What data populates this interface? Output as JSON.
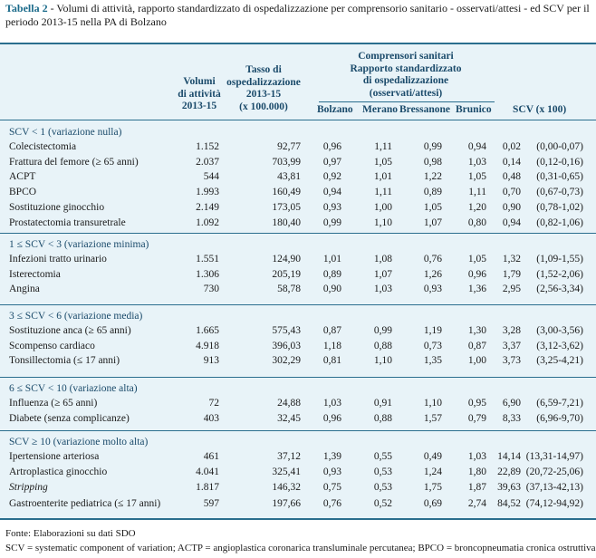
{
  "caption": {
    "label": "Tabella 2",
    "text": " - Volumi di attività, rapporto standardizzato di ospedalizzazione per comprensorio sanitario - osservati/attesi - ed SCV per il periodo 2013-15 nella PA di Bolzano"
  },
  "headers": {
    "volumi": [
      "Volumi",
      "di attività",
      "2013-15"
    ],
    "tasso": [
      "Tasso di",
      "ospedalizzazione",
      "2013-15",
      "(x 100.000)"
    ],
    "comprensori": [
      "Comprensori sanitari",
      "Rapporto standardizzato",
      "di ospedalizzazione",
      "(osservati/attesi)"
    ],
    "bolzano": "Bolzano",
    "merano": "Merano",
    "bressanone": "Bressanone",
    "brunico": "Brunico",
    "scv": "SCV (x 100)"
  },
  "sections": [
    {
      "title": "SCV < 1 (variazione nulla)",
      "rows": [
        {
          "name": "Colecistectomia",
          "vol": "1.152",
          "tasso": "92,77",
          "bz": "0,96",
          "me": "1,11",
          "br": "0,99",
          "bu": "0,94",
          "scv": "0,02",
          "ci": "(0,00-0,07)"
        },
        {
          "name": "Frattura del femore (≥ 65 anni)",
          "vol": "2.037",
          "tasso": "703,99",
          "bz": "0,97",
          "me": "1,05",
          "br": "0,98",
          "bu": "1,03",
          "scv": "0,14",
          "ci": "(0,12-0,16)"
        },
        {
          "name": "ACPT",
          "vol": "544",
          "tasso": "43,81",
          "bz": "0,92",
          "me": "1,01",
          "br": "1,22",
          "bu": "1,05",
          "scv": "0,48",
          "ci": "(0,31-0,65)"
        },
        {
          "name": "BPCO",
          "vol": "1.993",
          "tasso": "160,49",
          "bz": "0,94",
          "me": "1,11",
          "br": "0,89",
          "bu": "1,11",
          "scv": "0,70",
          "ci": "(0,67-0,73)"
        },
        {
          "name": "Sostituzione ginocchio",
          "vol": "2.149",
          "tasso": "173,05",
          "bz": "0,93",
          "me": "1,00",
          "br": "1,05",
          "bu": "1,20",
          "scv": "0,90",
          "ci": "(0,78-1,02)"
        },
        {
          "name": "Prostatectomia transuretrale",
          "vol": "1.092",
          "tasso": "180,40",
          "bz": "0,99",
          "me": "1,10",
          "br": "1,07",
          "bu": "0,80",
          "scv": "0,94",
          "ci": "(0,82-1,06)"
        }
      ]
    },
    {
      "title": "1 ≤ SCV < 3 (variazione minima)",
      "rows": [
        {
          "name": "Infezioni tratto urinario",
          "vol": "1.551",
          "tasso": "124,90",
          "bz": "1,01",
          "me": "1,08",
          "br": "0,76",
          "bu": "1,05",
          "scv": "1,32",
          "ci": "(1,09-1,55)"
        },
        {
          "name": "Isterectomia",
          "vol": "1.306",
          "tasso": "205,19",
          "bz": "0,89",
          "me": "1,07",
          "br": "1,26",
          "bu": "0,96",
          "scv": "1,79",
          "ci": "(1,52-2,06)"
        },
        {
          "name": "Angina",
          "vol": "730",
          "tasso": "58,78",
          "bz": "0,90",
          "me": "1,03",
          "br": "0,93",
          "bu": "1,36",
          "scv": "2,95",
          "ci": "(2,56-3,34)"
        }
      ]
    },
    {
      "title": "3 ≤ SCV < 6 (variazione media)",
      "rows": [
        {
          "name": "Sostituzione anca (≥ 65 anni)",
          "vol": "1.665",
          "tasso": "575,43",
          "bz": "0,87",
          "me": "0,99",
          "br": "1,19",
          "bu": "1,30",
          "scv": "3,28",
          "ci": "(3,00-3,56)"
        },
        {
          "name": "Scompenso cardiaco",
          "vol": "4.918",
          "tasso": "396,03",
          "bz": "1,18",
          "me": "0,88",
          "br": "0,73",
          "bu": "0,87",
          "scv": "3,37",
          "ci": "(3,12-3,62)"
        },
        {
          "name": "Tonsillectomia (≤ 17 anni)",
          "vol": "913",
          "tasso": "302,29",
          "bz": "0,81",
          "me": "1,10",
          "br": "1,35",
          "bu": "1,00",
          "scv": "3,73",
          "ci": "(3,25-4,21)"
        }
      ]
    },
    {
      "title": "6 ≤ SCV < 10 (variazione alta)",
      "rows": [
        {
          "name": "Influenza (≥ 65 anni)",
          "vol": "72",
          "tasso": "24,88",
          "bz": "1,03",
          "me": "0,91",
          "br": "1,10",
          "bu": "0,95",
          "scv": "6,90",
          "ci": "(6,59-7,21)"
        },
        {
          "name": "Diabete (senza complicanze)",
          "vol": "403",
          "tasso": "32,45",
          "bz": "0,96",
          "me": "0,88",
          "br": "1,57",
          "bu": "0,79",
          "scv": "8,33",
          "ci": "(6,96-9,70)"
        }
      ]
    },
    {
      "title": "SCV ≥ 10 (variazione molto alta)",
      "rows": [
        {
          "name": "Ipertensione arteriosa",
          "vol": "461",
          "tasso": "37,12",
          "bz": "1,39",
          "me": "0,55",
          "br": "0,49",
          "bu": "1,03",
          "scv": "14,14",
          "ci": "(13,31-14,97)"
        },
        {
          "name": "Artroplastica ginocchio",
          "vol": "4.041",
          "tasso": "325,41",
          "bz": "0,93",
          "me": "0,53",
          "br": "1,24",
          "bu": "1,80",
          "scv": "22,89",
          "ci": "(20,72-25,06)"
        },
        {
          "name": "Stripping",
          "italic": true,
          "vol": "1.817",
          "tasso": "146,32",
          "bz": "0,75",
          "me": "0,53",
          "br": "1,75",
          "bu": "1,87",
          "scv": "39,63",
          "ci": "(37,13-42,13)"
        },
        {
          "name": "Gastroenterite pediatrica (≤ 17 anni)",
          "vol": "597",
          "tasso": "197,66",
          "bz": "0,76",
          "me": "0,52",
          "br": "0,69",
          "bu": "2,74",
          "scv": "84,52",
          "ci": "(74,12-94,92)"
        }
      ]
    }
  ],
  "footer": {
    "source": "Fonte: Elaborazioni su dati SDO",
    "note": "SCV = systematic component of variation; ACTP = angioplastica coronarica transluminale percutanea; BPCO = broncopneumatia cronica ostruttiva"
  }
}
